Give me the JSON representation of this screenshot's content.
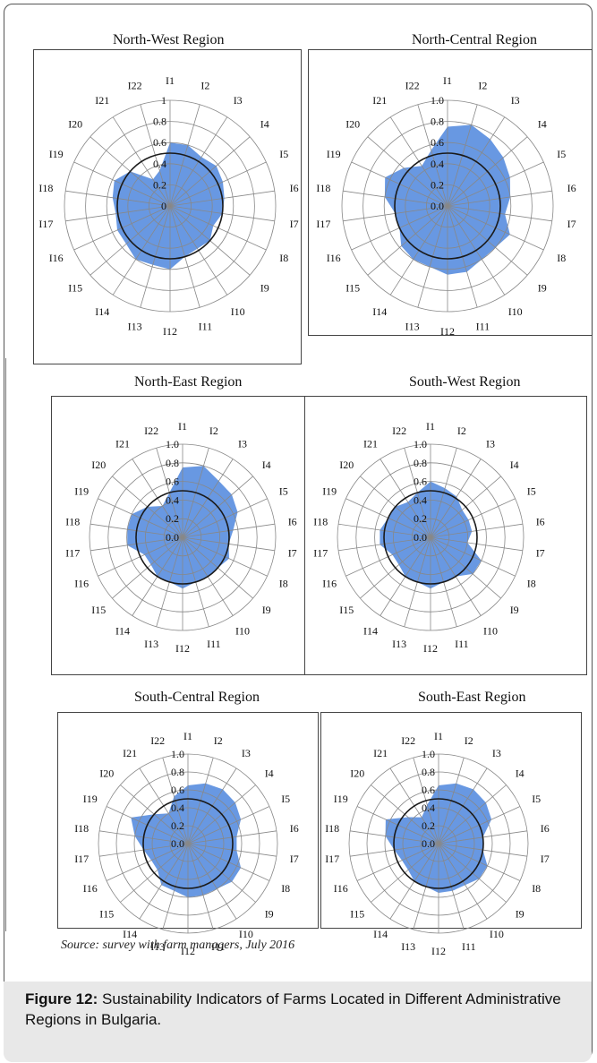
{
  "colors": {
    "fill": "#5b8fe0",
    "grid": "#888888",
    "ring": "#1a1a1a",
    "text": "#111111"
  },
  "source": "Source: survey with farm managers, July 2016",
  "caption": {
    "label": "Figure 12:",
    "text": "Sustainability Indicators of Farms Located in Different Administrative Regions in Bulgaria."
  },
  "chart_data": [
    {
      "type": "radar",
      "title": "North-West Region",
      "axes": [
        "I1",
        "I2",
        "I3",
        "I4",
        "I5",
        "I6",
        "I7",
        "I8",
        "I9",
        "I10",
        "I11",
        "I12",
        "I13",
        "I14",
        "I15",
        "I16",
        "I17",
        "I18",
        "I19",
        "I20",
        "I21",
        "I22"
      ],
      "ticks": [
        "0",
        "0.2",
        "0.4",
        "0.6",
        "0.8",
        "1"
      ],
      "rmax": 1.0,
      "reference_circle": 0.5,
      "values": [
        0.6,
        0.6,
        0.55,
        0.58,
        0.55,
        0.52,
        0.5,
        0.45,
        0.5,
        0.48,
        0.5,
        0.6,
        0.58,
        0.6,
        0.55,
        0.55,
        0.52,
        0.55,
        0.58,
        0.5,
        0.3,
        0.35
      ]
    },
    {
      "type": "radar",
      "title": "North-Central Region",
      "axes": [
        "I1",
        "I2",
        "I3",
        "I4",
        "I5",
        "I6",
        "I7",
        "I8",
        "I9",
        "I10",
        "I11",
        "I12",
        "I13",
        "I14",
        "I15",
        "I16",
        "I17",
        "I18",
        "I19",
        "I20",
        "I21",
        "I22"
      ],
      "ticks": [
        "0.0",
        "0.2",
        "0.4",
        "0.6",
        "0.8",
        "1.0"
      ],
      "rmax": 1.0,
      "reference_circle": 0.5,
      "values": [
        0.75,
        0.8,
        0.75,
        0.7,
        0.65,
        0.6,
        0.55,
        0.65,
        0.6,
        0.6,
        0.65,
        0.65,
        0.6,
        0.6,
        0.58,
        0.5,
        0.5,
        0.6,
        0.65,
        0.55,
        0.45,
        0.55
      ]
    },
    {
      "type": "radar",
      "title": "North-East Region",
      "axes": [
        "I1",
        "I2",
        "I3",
        "I4",
        "I5",
        "I6",
        "I7",
        "I8",
        "I9",
        "I10",
        "I11",
        "I12",
        "I13",
        "I14",
        "I15",
        "I16",
        "I17",
        "I18",
        "I19",
        "I20",
        "I21",
        "I22"
      ],
      "ticks": [
        "0.0",
        "0.2",
        "0.4",
        "0.6",
        "0.8",
        "1.0"
      ],
      "rmax": 1.0,
      "reference_circle": 0.5,
      "values": [
        0.75,
        0.8,
        0.72,
        0.7,
        0.65,
        0.55,
        0.5,
        0.55,
        0.5,
        0.5,
        0.5,
        0.55,
        0.5,
        0.5,
        0.45,
        0.45,
        0.6,
        0.6,
        0.6,
        0.5,
        0.4,
        0.5
      ]
    },
    {
      "type": "radar",
      "title": "South-West Region",
      "axes": [
        "I1",
        "I2",
        "I3",
        "I4",
        "I5",
        "I6",
        "I7",
        "I8",
        "I9",
        "I10",
        "I11",
        "I12",
        "I13",
        "I14",
        "I15",
        "I16",
        "I17",
        "I18",
        "I19",
        "I20",
        "I21",
        "I22"
      ],
      "ticks": [
        "0.0",
        "0.2",
        "0.4",
        "0.6",
        "0.8",
        "1.0"
      ],
      "rmax": 1.0,
      "reference_circle": 0.5,
      "values": [
        0.6,
        0.55,
        0.52,
        0.45,
        0.45,
        0.45,
        0.4,
        0.6,
        0.6,
        0.5,
        0.5,
        0.55,
        0.5,
        0.5,
        0.45,
        0.45,
        0.55,
        0.55,
        0.5,
        0.5,
        0.45,
        0.5
      ]
    },
    {
      "type": "radar",
      "title": "South-Central Region",
      "axes": [
        "I1",
        "I2",
        "I3",
        "I4",
        "I5",
        "I6",
        "I7",
        "I8",
        "I9",
        "I10",
        "I11",
        "I12",
        "I13",
        "I14",
        "I15",
        "I16",
        "I17",
        "I18",
        "I19",
        "I20",
        "I21",
        "I22"
      ],
      "ticks": [
        "0.0",
        "0.2",
        "0.4",
        "0.6",
        "0.8",
        "1.0"
      ],
      "rmax": 1.0,
      "reference_circle": 0.5,
      "values": [
        0.65,
        0.7,
        0.72,
        0.7,
        0.65,
        0.55,
        0.55,
        0.65,
        0.65,
        0.6,
        0.6,
        0.6,
        0.55,
        0.55,
        0.45,
        0.45,
        0.5,
        0.6,
        0.7,
        0.5,
        0.4,
        0.55
      ]
    },
    {
      "type": "radar",
      "title": "South-East Region",
      "axes": [
        "I1",
        "I2",
        "I3",
        "I4",
        "I5",
        "I6",
        "I7",
        "I8",
        "I9",
        "I10",
        "I11",
        "I12",
        "I13",
        "I14",
        "I15",
        "I16",
        "I17",
        "I18",
        "I19",
        "I20",
        "I21",
        "I22"
      ],
      "ticks": [
        "0.0",
        "0.2",
        "0.4",
        "0.6",
        "0.8",
        "1.0"
      ],
      "rmax": 1.0,
      "reference_circle": 0.5,
      "values": [
        0.65,
        0.7,
        0.72,
        0.7,
        0.65,
        0.5,
        0.5,
        0.6,
        0.6,
        0.55,
        0.55,
        0.55,
        0.5,
        0.5,
        0.45,
        0.45,
        0.5,
        0.6,
        0.65,
        0.45,
        0.35,
        0.45
      ]
    }
  ]
}
